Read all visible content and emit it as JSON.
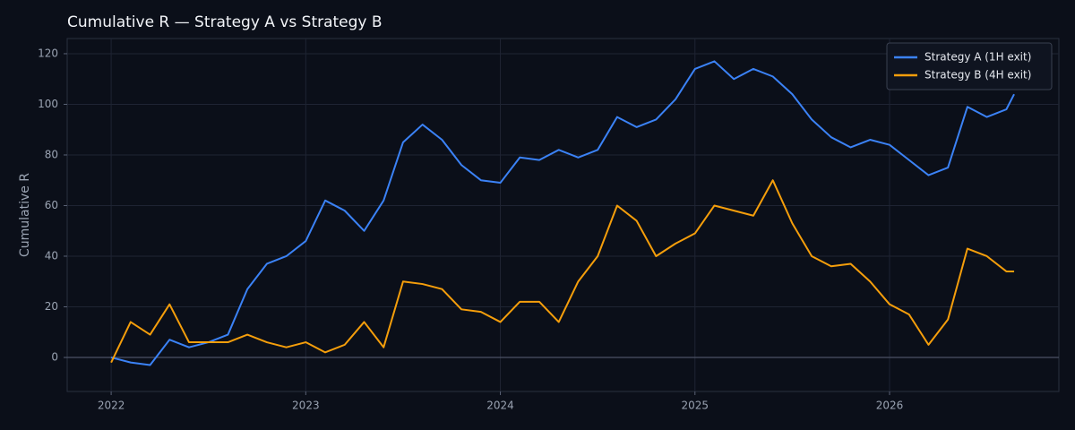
{
  "chart_data": {
    "type": "line",
    "title": "Cumulative R — Strategy A vs Strategy B",
    "y_label": "Cumulative R",
    "x": [
      2022.0,
      2022.1,
      2022.2,
      2022.3,
      2022.4,
      2022.5,
      2022.6,
      2022.7,
      2022.8,
      2022.9,
      2023.0,
      2023.1,
      2023.2,
      2023.3,
      2023.4,
      2023.5,
      2023.6,
      2023.7,
      2023.8,
      2023.9,
      2024.0,
      2024.1,
      2024.2,
      2024.3,
      2024.4,
      2024.5,
      2024.6,
      2024.7,
      2024.8,
      2024.9,
      2025.0,
      2025.1,
      2025.2,
      2025.3,
      2025.4,
      2025.5,
      2025.6,
      2025.7,
      2025.8,
      2025.9,
      2026.0,
      2026.1,
      2026.2,
      2026.3,
      2026.4,
      2026.5,
      2026.6,
      2026.64
    ],
    "series": [
      {
        "name": "Strategy A (1H exit)",
        "color": "#3b82f6",
        "values": [
          0,
          -2,
          -3,
          7,
          4,
          6,
          9,
          27,
          37,
          40,
          46,
          62,
          58,
          50,
          62,
          85,
          92,
          86,
          76,
          70,
          69,
          79,
          78,
          82,
          79,
          82,
          95,
          91,
          94,
          102,
          114,
          117,
          110,
          114,
          111,
          104,
          94,
          87,
          83,
          86,
          84,
          78,
          72,
          75,
          99,
          95,
          98,
          104
        ]
      },
      {
        "name": "Strategy B (4H exit)",
        "color": "#f59e0b",
        "values": [
          -2,
          14,
          9,
          21,
          6,
          6,
          6,
          9,
          6,
          4,
          6,
          2,
          5,
          14,
          4,
          30,
          29,
          27,
          19,
          18,
          14,
          22,
          22,
          14,
          30,
          40,
          60,
          54,
          40,
          45,
          49,
          60,
          58,
          56,
          70,
          53,
          40,
          36,
          37,
          30,
          21,
          17,
          5,
          15,
          43,
          40,
          34,
          34
        ]
      }
    ],
    "xlim": [
      2021.774,
      2026.87
    ],
    "xticks": [
      2022,
      2023,
      2024,
      2025,
      2026
    ],
    "ylim": [
      -13.45,
      126
    ],
    "yticks": [
      0,
      20,
      40,
      60,
      80,
      100,
      120
    ],
    "grid": true,
    "zero_line": true,
    "legend": "upper right"
  }
}
